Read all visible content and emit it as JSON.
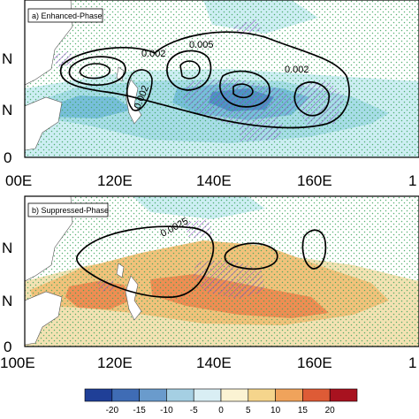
{
  "colors": {
    "neg_light": "#cdeef3",
    "neg_mid": "#a7dde7",
    "neg_strong": "#77bfda",
    "neg_deep": "#4d94c7",
    "pos_light": "#f3e2b3",
    "pos_mid": "#f2c27b",
    "pos_strong": "#ef8d53",
    "hatch": "#8a4fc2",
    "stipple": "#3aa35a",
    "land": "#ffffff"
  },
  "panels": [
    {
      "title": "a) Enhanced-Phase",
      "y_left_labels": [
        "N",
        "N",
        "0"
      ],
      "contour_labels": [
        "0.002",
        "0.005",
        "0.002",
        "0.002"
      ]
    },
    {
      "title": "b) Suppressed-Phase",
      "y_left_labels": [
        "N",
        "N",
        "0"
      ],
      "contour_labels": [
        "0.0025"
      ]
    }
  ],
  "x_axis": {
    "panel_a_ticks": [
      "00E",
      "120E",
      "140E",
      "160E",
      "1"
    ],
    "panel_b_ticks": [
      "100E",
      "120E",
      "140E",
      "160E",
      "1"
    ]
  },
  "colorbar": {
    "labels": [
      "-20",
      "-15",
      "-10",
      "-5",
      "0",
      "5",
      "10",
      "15",
      "20"
    ],
    "colors": [
      "#1f3f97",
      "#3f6cb5",
      "#6a9bcc",
      "#a5cfe3",
      "#d9eef4",
      "#fbf3d3",
      "#f5d58c",
      "#f0a35b",
      "#de5b36",
      "#a8121f"
    ]
  }
}
